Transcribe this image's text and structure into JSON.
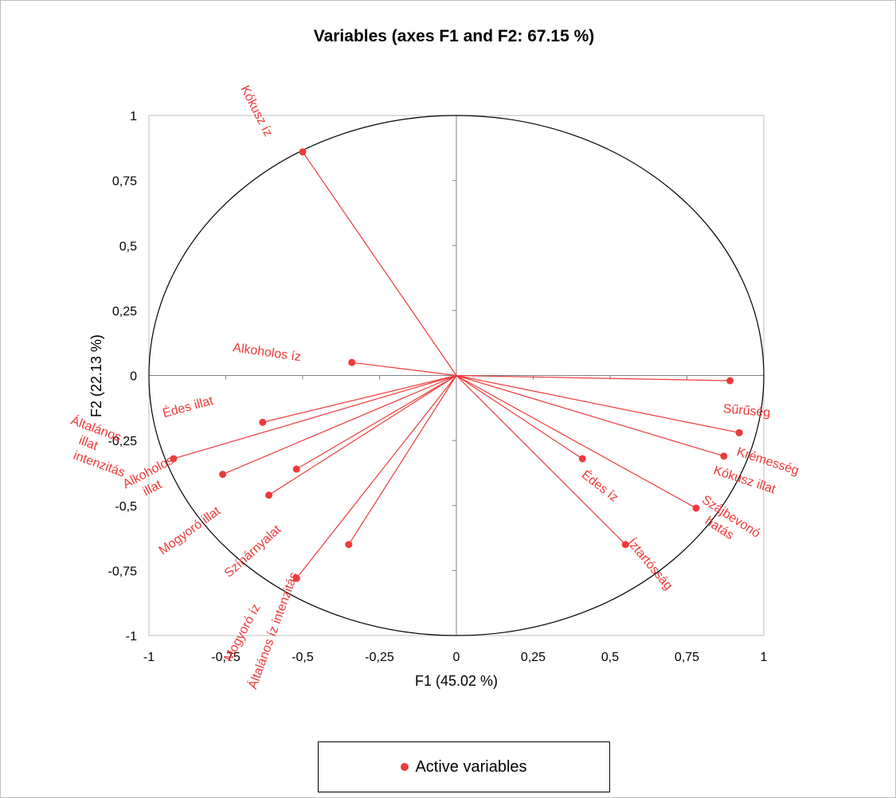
{
  "colors": {
    "variable": "#ee3a3a",
    "axis": "#808080",
    "plot_border": "#bfbfbf",
    "circle": "#000000"
  },
  "chart_data": {
    "type": "scatter",
    "title": "Variables (axes F1 and F2: 67.15 %)",
    "xlabel": "F1 (45.02 %)",
    "ylabel": "F2 (22.13 %)",
    "xlim": [
      -1,
      1
    ],
    "ylim": [
      -1,
      1
    ],
    "x_ticks": [
      "-1",
      "-0,75",
      "-0,5",
      "-0,25",
      "0",
      "0,25",
      "0,5",
      "0,75",
      "1"
    ],
    "y_ticks": [
      "1",
      "0,75",
      "0,5",
      "0,25",
      "0",
      "-0,25",
      "-0,5",
      "-0,75",
      "-1"
    ],
    "grid": false,
    "correlation_circle": true,
    "legend": {
      "position": "bottom",
      "entries": [
        "Active variables"
      ]
    },
    "points": [
      {
        "label": "Kókusz íz",
        "x": -0.5,
        "y": 0.86
      },
      {
        "label": "Alkoholos íz",
        "x": -0.34,
        "y": 0.05
      },
      {
        "label": "Sűrűség",
        "x": 0.89,
        "y": -0.02
      },
      {
        "label": "Krémesség",
        "x": 0.92,
        "y": -0.22
      },
      {
        "label": "Kókusz illat",
        "x": 0.87,
        "y": -0.31
      },
      {
        "label": "Szájbevonó hatás",
        "x": 0.78,
        "y": -0.51
      },
      {
        "label": "Édes íz",
        "x": 0.41,
        "y": -0.32
      },
      {
        "label": "Íztartósság",
        "x": 0.55,
        "y": -0.65
      },
      {
        "label": "Édes illat",
        "x": -0.63,
        "y": -0.18
      },
      {
        "label": "Általános illat intenzitás",
        "x": -0.92,
        "y": -0.32
      },
      {
        "label": "Alkoholos illat",
        "x": -0.76,
        "y": -0.38
      },
      {
        "label": "Mogyoró illat",
        "x": -0.52,
        "y": -0.36
      },
      {
        "label": "Színárnyalat",
        "x": -0.61,
        "y": -0.46
      },
      {
        "label": "Mogyoró íz",
        "x": -0.35,
        "y": -0.65
      },
      {
        "label": "Általános íz intenzitás",
        "x": -0.52,
        "y": -0.78
      }
    ]
  }
}
